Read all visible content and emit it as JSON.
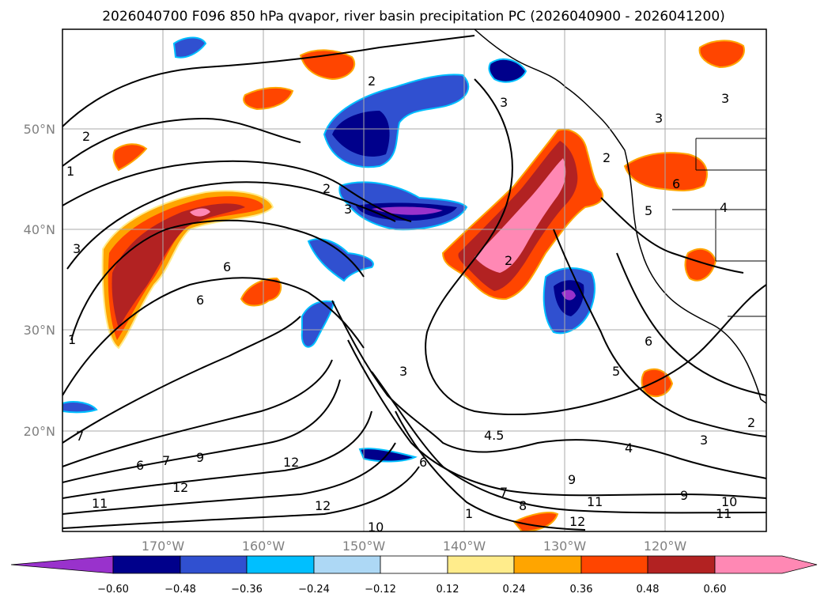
{
  "title": "2026040700 F096 850 hPa qvapor, river basin precipitation PC (2026040900 - 2026041200)",
  "map": {
    "lat_labels": [
      "50°N",
      "40°N",
      "30°N",
      "20°N"
    ],
    "lon_labels": [
      "170°W",
      "160°W",
      "150°W",
      "140°W",
      "130°W",
      "120°W"
    ],
    "grid": true,
    "contour_color": "#000000",
    "contour_labels": [
      "2",
      "2",
      "1",
      "3",
      "3",
      "1",
      "1",
      "2",
      "3",
      "2",
      "2",
      "3",
      "6",
      "6",
      "7",
      "7",
      "6",
      "9",
      "11",
      "12",
      "12",
      "12",
      "10",
      "3",
      "4.5",
      "6",
      "7",
      "8",
      "9",
      "11",
      "12",
      "4",
      "5",
      "6",
      "9",
      "10",
      "11",
      "3",
      "2",
      "6",
      "5",
      "4",
      "3"
    ]
  },
  "colorbar": {
    "ticks": [
      "−0.60",
      "−0.48",
      "−0.36",
      "−0.24",
      "−0.12",
      "0.12",
      "0.24",
      "0.36",
      "0.48",
      "0.60"
    ],
    "colors": {
      "under": "#9932cc",
      "neg060": "#00008b",
      "neg048": "#3050d0",
      "neg036": "#00bfff",
      "neg024": "#add8f5",
      "neutral": "#ffffff",
      "pos012": "#ffec8b",
      "pos024": "#ffa500",
      "pos036": "#ff4500",
      "pos048": "#b22222",
      "over": "#ff88b4"
    }
  }
}
